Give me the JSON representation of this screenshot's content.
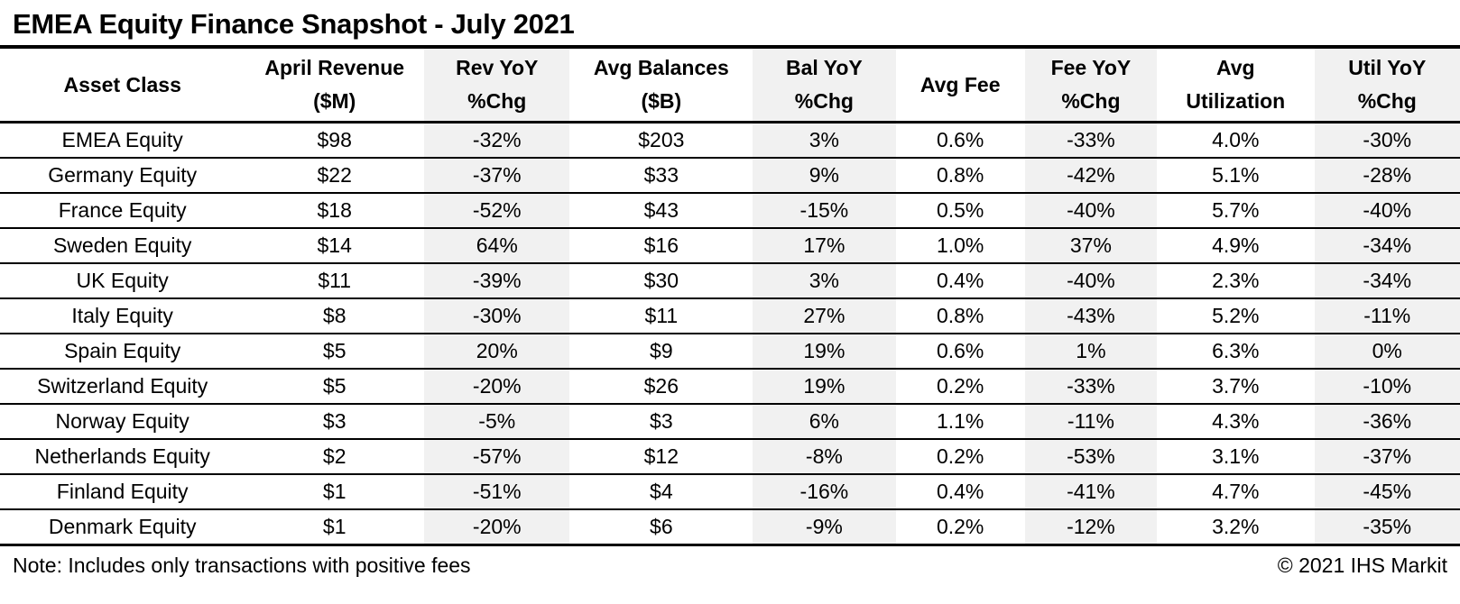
{
  "title": "EMEA Equity Finance Snapshot - July 2021",
  "colors": {
    "background": "#ffffff",
    "text": "#000000",
    "border": "#000000",
    "shaded_column_bg": "#f1f1f1"
  },
  "header": {
    "labels": [
      "Asset Class",
      "April Revenue\n($M)",
      "Rev YoY\n%Chg",
      "Avg Balances\n($B)",
      "Bal YoY\n%Chg",
      "Avg Fee",
      "Fee YoY\n%Chg",
      "Avg\nUtilization",
      "Util YoY\n%Chg"
    ]
  },
  "footer": {
    "note": "Note: Includes only transactions with positive fees",
    "copyright": "© 2021 IHS Markit"
  },
  "chart_data": {
    "type": "table",
    "title": "EMEA Equity Finance Snapshot - July 2021",
    "columns": [
      "Asset Class",
      "April Revenue ($M)",
      "Rev YoY %Chg",
      "Avg Balances ($B)",
      "Bal YoY %Chg",
      "Avg Fee",
      "Fee YoY %Chg",
      "Avg Utilization",
      "Util YoY %Chg"
    ],
    "shaded_columns": [
      2,
      4,
      6,
      8
    ],
    "rows": [
      [
        "EMEA Equity",
        "$98",
        "-32%",
        "$203",
        "3%",
        "0.6%",
        "-33%",
        "4.0%",
        "-30%"
      ],
      [
        "Germany Equity",
        "$22",
        "-37%",
        "$33",
        "9%",
        "0.8%",
        "-42%",
        "5.1%",
        "-28%"
      ],
      [
        "France Equity",
        "$18",
        "-52%",
        "$43",
        "-15%",
        "0.5%",
        "-40%",
        "5.7%",
        "-40%"
      ],
      [
        "Sweden Equity",
        "$14",
        "64%",
        "$16",
        "17%",
        "1.0%",
        "37%",
        "4.9%",
        "-34%"
      ],
      [
        "UK Equity",
        "$11",
        "-39%",
        "$30",
        "3%",
        "0.4%",
        "-40%",
        "2.3%",
        "-34%"
      ],
      [
        "Italy Equity",
        "$8",
        "-30%",
        "$11",
        "27%",
        "0.8%",
        "-43%",
        "5.2%",
        "-11%"
      ],
      [
        "Spain Equity",
        "$5",
        "20%",
        "$9",
        "19%",
        "0.6%",
        "1%",
        "6.3%",
        "0%"
      ],
      [
        "Switzerland Equity",
        "$5",
        "-20%",
        "$26",
        "19%",
        "0.2%",
        "-33%",
        "3.7%",
        "-10%"
      ],
      [
        "Norway Equity",
        "$3",
        "-5%",
        "$3",
        "6%",
        "1.1%",
        "-11%",
        "4.3%",
        "-36%"
      ],
      [
        "Netherlands Equity",
        "$2",
        "-57%",
        "$12",
        "-8%",
        "0.2%",
        "-53%",
        "3.1%",
        "-37%"
      ],
      [
        "Finland Equity",
        "$1",
        "-51%",
        "$4",
        "-16%",
        "0.4%",
        "-41%",
        "4.7%",
        "-45%"
      ],
      [
        "Denmark Equity",
        "$1",
        "-20%",
        "$6",
        "-9%",
        "0.2%",
        "-12%",
        "3.2%",
        "-35%"
      ]
    ],
    "note": "Note: Includes only transactions with positive fees",
    "source": "© 2021 IHS Markit"
  }
}
